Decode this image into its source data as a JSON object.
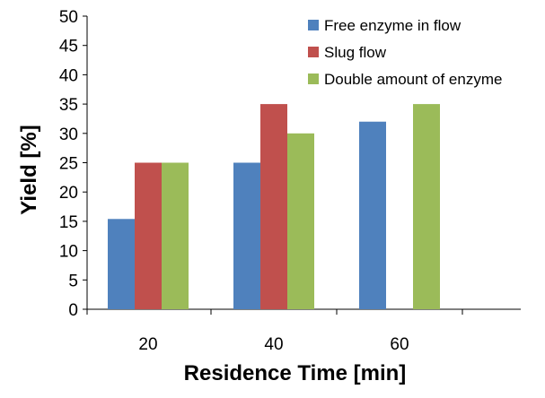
{
  "chart_data": {
    "type": "bar",
    "categories": [
      "20",
      "40",
      "60"
    ],
    "series": [
      {
        "name": "Free enzyme in flow",
        "color": "#4f81bd",
        "values": [
          15.4,
          25,
          32
        ]
      },
      {
        "name": "Slug flow",
        "color": "#c0504d",
        "values": [
          25,
          35,
          null
        ]
      },
      {
        "name": "Double amount of enzyme",
        "color": "#9bbb59",
        "values": [
          25,
          30,
          35
        ]
      }
    ],
    "xlabel": "Residence Time [min]",
    "ylabel": "Yield [%]",
    "ylim": [
      0,
      50
    ],
    "yticks": [
      0,
      5,
      10,
      15,
      20,
      25,
      30,
      35,
      40,
      45,
      50
    ],
    "grid": false,
    "legend_position": "top-right"
  }
}
